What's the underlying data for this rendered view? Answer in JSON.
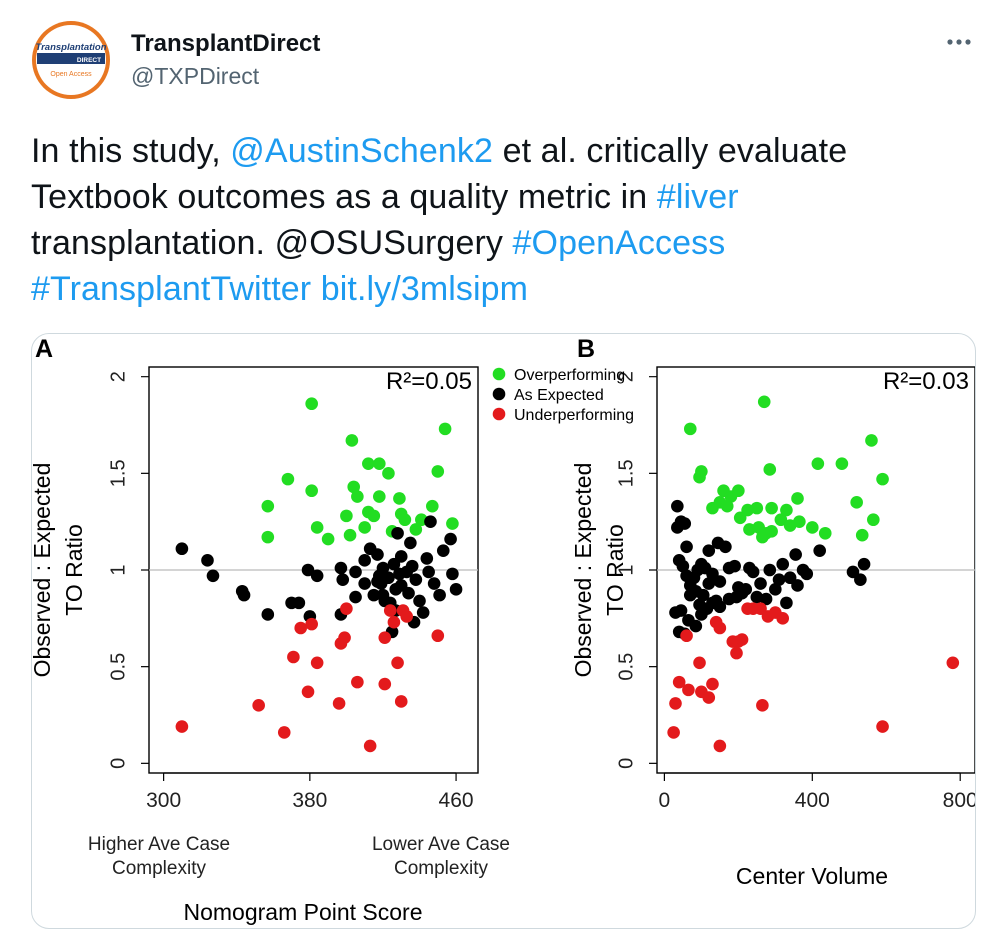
{
  "account": {
    "display_name": "TransplantDirect",
    "handle": "@TXPDirect",
    "avatar_text_top": "Transplantation",
    "avatar_text_mid": "DIRECT",
    "avatar_text_bottom": "Open Access"
  },
  "tweet": {
    "segments": [
      {
        "text": "In this study, ",
        "link": false
      },
      {
        "text": "@AustinSchenk2",
        "link": true
      },
      {
        "text": " et al. critically evaluate Textbook outcomes as a quality metric in ",
        "link": false
      },
      {
        "text": "#liver",
        "link": true
      },
      {
        "text": " transplantation. @OSUSurgery ",
        "link": false
      },
      {
        "text": "#OpenAccess",
        "link": true
      },
      {
        "text": " ",
        "link": false
      },
      {
        "text": "#TransplantTwitter",
        "link": true
      },
      {
        "text": " ",
        "link": false
      },
      {
        "text": "bit.ly/3mlsipm",
        "link": true
      }
    ]
  },
  "colors": {
    "link": "#1d9bf0",
    "overperforming": "#22dd22",
    "as_expected": "#000000",
    "underperforming": "#e31a1c"
  },
  "figure": {
    "legend": [
      {
        "name": "Overperforming",
        "color": "#22dd22"
      },
      {
        "name": "As Expected",
        "color": "#000000"
      },
      {
        "name": "Underperforming",
        "color": "#e31a1c"
      }
    ],
    "y_label_1": "Observed  : Expected",
    "y_label_2": "TO Ratio"
  },
  "chart_data": [
    {
      "type": "scatter",
      "panel_label": "A",
      "annotation": "R²=0.05",
      "xlabel": "Nomogram  Point Score",
      "xlabel_low": [
        "Higher Ave Case",
        "Complexity"
      ],
      "xlabel_high": [
        "Lower Ave Case",
        "Complexity"
      ],
      "ylabel": "Observed  : Expected TO Ratio",
      "xlim": [
        292,
        472
      ],
      "ylim": [
        -0.05,
        2.05
      ],
      "xticks": [
        300,
        380,
        460
      ],
      "yticks": [
        0,
        0.5,
        1,
        1.5,
        2
      ],
      "reference_line": 1,
      "series": [
        {
          "name": "Overperforming",
          "color": "#22dd22",
          "points": [
            [
              381,
              1.86
            ],
            [
              454,
              1.73
            ],
            [
              403,
              1.67
            ],
            [
              368,
              1.47
            ],
            [
              381,
              1.41
            ],
            [
              412,
              1.55
            ],
            [
              418,
              1.55
            ],
            [
              450,
              1.51
            ],
            [
              404,
              1.43
            ],
            [
              423,
              1.5
            ],
            [
              357,
              1.33
            ],
            [
              406,
              1.38
            ],
            [
              418,
              1.38
            ],
            [
              429,
              1.37
            ],
            [
              447,
              1.33
            ],
            [
              412,
              1.3
            ],
            [
              400,
              1.28
            ],
            [
              430,
              1.29
            ],
            [
              432,
              1.26
            ],
            [
              357,
              1.17
            ],
            [
              384,
              1.22
            ],
            [
              390,
              1.16
            ],
            [
              402,
              1.18
            ],
            [
              410,
              1.22
            ],
            [
              425,
              1.2
            ],
            [
              438,
              1.21
            ],
            [
              458,
              1.24
            ],
            [
              415,
              1.28
            ],
            [
              441,
              1.26
            ]
          ]
        },
        {
          "name": "As Expected",
          "color": "#000000",
          "points": [
            [
              310,
              1.11
            ],
            [
              324,
              1.05
            ],
            [
              327,
              0.97
            ],
            [
              343,
              0.89
            ],
            [
              344,
              0.87
            ],
            [
              357,
              0.77
            ],
            [
              370,
              0.83
            ],
            [
              374,
              0.83
            ],
            [
              379,
              1.0
            ],
            [
              380,
              0.76
            ],
            [
              384,
              0.97
            ],
            [
              397,
              1.01
            ],
            [
              397,
              0.77
            ],
            [
              398,
              0.95
            ],
            [
              405,
              0.99
            ],
            [
              410,
              1.05
            ],
            [
              410,
              0.93
            ],
            [
              413,
              1.11
            ],
            [
              415,
              0.87
            ],
            [
              417,
              0.94
            ],
            [
              418,
              0.97
            ],
            [
              419,
              0.93
            ],
            [
              420,
              1.01
            ],
            [
              420,
              0.87
            ],
            [
              421,
              0.84
            ],
            [
              423,
              0.96
            ],
            [
              424,
              0.83
            ],
            [
              426,
              1.03
            ],
            [
              427,
              0.9
            ],
            [
              427,
              0.79
            ],
            [
              429,
              0.98
            ],
            [
              430,
              1.07
            ],
            [
              430,
              0.92
            ],
            [
              433,
              0.99
            ],
            [
              434,
              0.88
            ],
            [
              436,
              1.02
            ],
            [
              438,
              0.95
            ],
            [
              440,
              0.84
            ],
            [
              442,
              0.78
            ],
            [
              444,
              1.06
            ],
            [
              445,
              0.99
            ],
            [
              448,
              0.93
            ],
            [
              451,
              0.87
            ],
            [
              453,
              1.1
            ],
            [
              457,
              1.16
            ],
            [
              458,
              0.98
            ],
            [
              460,
              0.9
            ],
            [
              428,
              1.19
            ],
            [
              437,
              0.73
            ],
            [
              425,
              0.68
            ],
            [
              446,
              1.25
            ],
            [
              417,
              1.08
            ],
            [
              405,
              0.86
            ],
            [
              435,
              1.14
            ]
          ]
        },
        {
          "name": "Underperforming",
          "color": "#e31a1c",
          "points": [
            [
              310,
              0.19
            ],
            [
              352,
              0.3
            ],
            [
              366,
              0.16
            ],
            [
              371,
              0.55
            ],
            [
              375,
              0.7
            ],
            [
              379,
              0.37
            ],
            [
              381,
              0.72
            ],
            [
              384,
              0.52
            ],
            [
              396,
              0.31
            ],
            [
              397,
              0.62
            ],
            [
              399,
              0.65
            ],
            [
              400,
              0.8
            ],
            [
              406,
              0.42
            ],
            [
              413,
              0.09
            ],
            [
              421,
              0.41
            ],
            [
              421,
              0.65
            ],
            [
              424,
              0.79
            ],
            [
              426,
              0.73
            ],
            [
              428,
              0.52
            ],
            [
              430,
              0.32
            ],
            [
              431,
              0.79
            ],
            [
              433,
              0.76
            ],
            [
              450,
              0.66
            ]
          ]
        }
      ]
    },
    {
      "type": "scatter",
      "panel_label": "B",
      "annotation": "R²=0.03",
      "xlabel": "Center  Volume",
      "xlim": [
        -20,
        840
      ],
      "ylim": [
        -0.05,
        2.05
      ],
      "xticks": [
        0,
        400,
        800
      ],
      "yticks": [
        0,
        0.5,
        1,
        1.5,
        2
      ],
      "reference_line": 1,
      "series": [
        {
          "name": "Overperforming",
          "color": "#22dd22",
          "points": [
            [
              270,
              1.87
            ],
            [
              70,
              1.73
            ],
            [
              560,
              1.67
            ],
            [
              100,
              1.51
            ],
            [
              95,
              1.48
            ],
            [
              285,
              1.52
            ],
            [
              415,
              1.55
            ],
            [
              480,
              1.55
            ],
            [
              590,
              1.47
            ],
            [
              160,
              1.41
            ],
            [
              180,
              1.38
            ],
            [
              200,
              1.41
            ],
            [
              150,
              1.35
            ],
            [
              130,
              1.32
            ],
            [
              225,
              1.31
            ],
            [
              250,
              1.32
            ],
            [
              290,
              1.32
            ],
            [
              330,
              1.31
            ],
            [
              360,
              1.37
            ],
            [
              520,
              1.35
            ],
            [
              230,
              1.21
            ],
            [
              255,
              1.22
            ],
            [
              265,
              1.17
            ],
            [
              275,
              1.19
            ],
            [
              290,
              1.2
            ],
            [
              315,
              1.26
            ],
            [
              340,
              1.23
            ],
            [
              365,
              1.25
            ],
            [
              400,
              1.22
            ],
            [
              435,
              1.19
            ],
            [
              535,
              1.18
            ],
            [
              565,
              1.26
            ],
            [
              205,
              1.27
            ],
            [
              170,
              1.33
            ]
          ]
        },
        {
          "name": "As Expected",
          "color": "#000000",
          "points": [
            [
              35,
              1.33
            ],
            [
              35,
              1.22
            ],
            [
              45,
              1.25
            ],
            [
              55,
              1.24
            ],
            [
              60,
              1.12
            ],
            [
              40,
              1.05
            ],
            [
              50,
              1.02
            ],
            [
              60,
              0.97
            ],
            [
              70,
              0.92
            ],
            [
              80,
              0.96
            ],
            [
              90,
              1.0
            ],
            [
              100,
              1.03
            ],
            [
              105,
              0.87
            ],
            [
              110,
              1.01
            ],
            [
              120,
              0.93
            ],
            [
              130,
              0.98
            ],
            [
              140,
              0.84
            ],
            [
              150,
              0.94
            ],
            [
              165,
              1.12
            ],
            [
              175,
              1.01
            ],
            [
              190,
              1.02
            ],
            [
              200,
              0.91
            ],
            [
              210,
              0.88
            ],
            [
              220,
              0.9
            ],
            [
              230,
              1.01
            ],
            [
              240,
              0.99
            ],
            [
              250,
              0.86
            ],
            [
              260,
              0.93
            ],
            [
              275,
              0.85
            ],
            [
              285,
              1.0
            ],
            [
              300,
              0.9
            ],
            [
              310,
              0.95
            ],
            [
              320,
              1.03
            ],
            [
              330,
              0.83
            ],
            [
              340,
              0.96
            ],
            [
              355,
              1.08
            ],
            [
              360,
              0.92
            ],
            [
              375,
              1.0
            ],
            [
              385,
              0.98
            ],
            [
              420,
              1.1
            ],
            [
              510,
              0.99
            ],
            [
              530,
              0.95
            ],
            [
              540,
              1.03
            ],
            [
              30,
              0.78
            ],
            [
              45,
              0.79
            ],
            [
              65,
              0.74
            ],
            [
              85,
              0.71
            ],
            [
              100,
              0.77
            ],
            [
              115,
              0.8
            ],
            [
              130,
              0.83
            ],
            [
              150,
              0.81
            ],
            [
              175,
              0.85
            ],
            [
              195,
              0.86
            ],
            [
              120,
              1.1
            ],
            [
              145,
              1.14
            ],
            [
              85,
              0.89
            ],
            [
              40,
              0.68
            ],
            [
              55,
              0.67
            ],
            [
              70,
              0.87
            ],
            [
              95,
              0.82
            ]
          ]
        },
        {
          "name": "Underperforming",
          "color": "#e31a1c",
          "points": [
            [
              780,
              0.52
            ],
            [
              590,
              0.19
            ],
            [
              60,
              0.66
            ],
            [
              95,
              0.52
            ],
            [
              140,
              0.73
            ],
            [
              150,
              0.7
            ],
            [
              185,
              0.63
            ],
            [
              200,
              0.63
            ],
            [
              210,
              0.64
            ],
            [
              225,
              0.8
            ],
            [
              240,
              0.8
            ],
            [
              260,
              0.8
            ],
            [
              280,
              0.76
            ],
            [
              300,
              0.78
            ],
            [
              320,
              0.75
            ],
            [
              40,
              0.42
            ],
            [
              65,
              0.38
            ],
            [
              100,
              0.37
            ],
            [
              120,
              0.34
            ],
            [
              130,
              0.41
            ],
            [
              30,
              0.31
            ],
            [
              25,
              0.16
            ],
            [
              150,
              0.09
            ],
            [
              265,
              0.3
            ],
            [
              195,
              0.57
            ]
          ]
        }
      ]
    }
  ]
}
